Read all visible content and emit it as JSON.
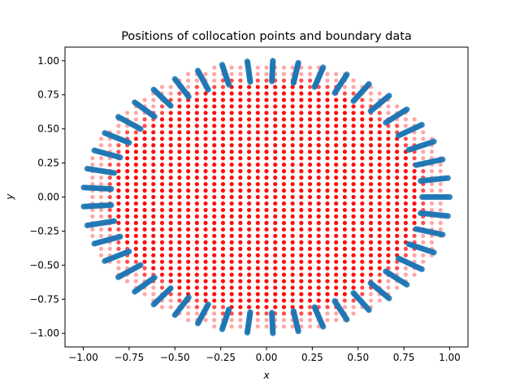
{
  "chart_data": {
    "type": "scatter",
    "title": "Positions of collocation points and boundary data",
    "xlabel": "x",
    "ylabel": "y",
    "xlim": [
      -1.1,
      1.1
    ],
    "ylim": [
      -1.1,
      1.1
    ],
    "xticks": [
      -1.0,
      -0.75,
      -0.5,
      -0.25,
      0.0,
      0.25,
      0.5,
      0.75,
      1.0
    ],
    "yticks": [
      -1.0,
      -0.75,
      -0.5,
      -0.25,
      0.0,
      0.25,
      0.5,
      0.75,
      1.0
    ],
    "xtick_labels": [
      "−1.00",
      "−0.75",
      "−0.50",
      "−0.25",
      "0.00",
      "0.25",
      "0.50",
      "0.75",
      "1.00"
    ],
    "ytick_labels": [
      "−1.00",
      "−0.75",
      "−0.50",
      "−0.25",
      "0.00",
      "0.25",
      "0.50",
      "0.75",
      "1.00"
    ],
    "grid": false,
    "series": [
      {
        "kind": "interior-grid",
        "color": "#ff0000",
        "domain": "unit disk",
        "grid_min": -0.95,
        "grid_max": 0.95,
        "grid_step": 0.0475
      },
      {
        "kind": "boundary-clusters",
        "color": "#1f77b4",
        "cluster_angles_deg": [
          0,
          8,
          16,
          24,
          32,
          40,
          48,
          56,
          64,
          72,
          80,
          88,
          96,
          104,
          112,
          120,
          128,
          136,
          144,
          152,
          160,
          168,
          176,
          184,
          192,
          200,
          208,
          216,
          224,
          232,
          240,
          248,
          256,
          264,
          272,
          280,
          288,
          296,
          304,
          312,
          320,
          328,
          336,
          344,
          352
        ],
        "radius_range": [
          0.85,
          1.0
        ]
      }
    ]
  }
}
